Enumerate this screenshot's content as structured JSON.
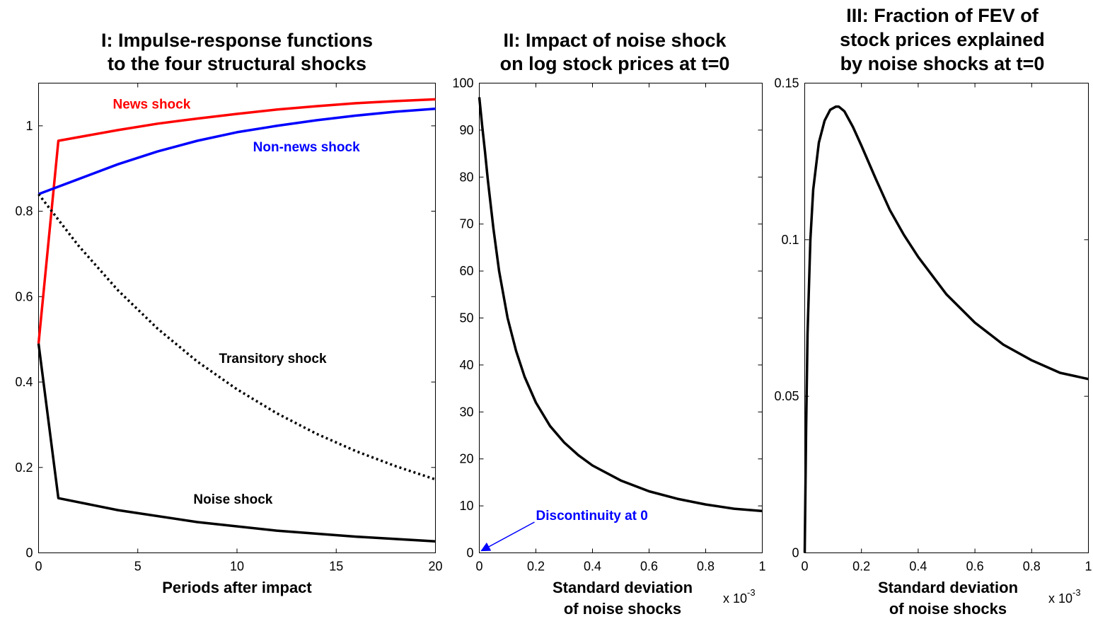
{
  "chart_data": [
    {
      "type": "line",
      "title": [
        "I: Impulse-response functions",
        "to the four structural shocks"
      ],
      "xlabel": [
        "Periods after impact"
      ],
      "ylabel": "",
      "xlim": [
        0,
        20
      ],
      "ylim": [
        0,
        1.1
      ],
      "xticks": [
        0,
        5,
        10,
        15,
        20
      ],
      "xticklabels": [
        "0",
        "5",
        "10",
        "15",
        "20"
      ],
      "yticks": [
        0,
        0.2,
        0.4,
        0.6,
        0.8,
        1
      ],
      "yticklabels": [
        "0",
        "0.2",
        "0.4",
        "0.6",
        "0.8",
        "1"
      ],
      "x_exponent": "",
      "grid": false,
      "series": [
        {
          "name": "News shock",
          "color": "#ff0000",
          "style": "solid",
          "x": [
            0,
            1,
            4,
            6,
            8,
            10,
            12,
            14,
            16,
            18,
            20
          ],
          "y": [
            0.49,
            0.965,
            0.99,
            1.005,
            1.017,
            1.028,
            1.038,
            1.046,
            1.053,
            1.058,
            1.062
          ]
        },
        {
          "name": "Non-news shock",
          "color": "#0000ff",
          "style": "solid",
          "x": [
            0,
            2,
            4,
            6,
            8,
            10,
            12,
            14,
            16,
            18,
            20
          ],
          "y": [
            0.84,
            0.875,
            0.91,
            0.94,
            0.965,
            0.985,
            1.0,
            1.013,
            1.024,
            1.033,
            1.04
          ]
        },
        {
          "name": "Transitory shock",
          "color": "#000000",
          "style": "dotted",
          "x": [
            0,
            2,
            4,
            6,
            8,
            10,
            12,
            14,
            16,
            18,
            20
          ],
          "y": [
            0.84,
            0.72,
            0.615,
            0.525,
            0.448,
            0.383,
            0.327,
            0.279,
            0.238,
            0.203,
            0.172
          ]
        },
        {
          "name": "Noise shock",
          "color": "#000000",
          "style": "solid",
          "x": [
            0,
            1,
            4,
            8,
            12,
            16,
            20
          ],
          "y": [
            0.49,
            0.128,
            0.1,
            0.072,
            0.052,
            0.038,
            0.027
          ]
        }
      ],
      "annotations": [
        {
          "text": "News shock",
          "x": 5.7,
          "y": 1.04,
          "color": "#ff0000",
          "anchor": "middle"
        },
        {
          "text": "Non-news shock",
          "x": 13.5,
          "y": 0.94,
          "color": "#0000ff",
          "anchor": "middle"
        },
        {
          "text": "Transitory shock",
          "x": 11.8,
          "y": 0.445,
          "color": "#000000",
          "anchor": "middle"
        },
        {
          "text": "Noise shock",
          "x": 9.8,
          "y": 0.115,
          "color": "#000000",
          "anchor": "middle"
        }
      ]
    },
    {
      "type": "line",
      "title": [
        "II: Impact of noise shock",
        "on log stock prices at t=0"
      ],
      "xlabel": [
        "Standard deviation",
        "of noise shocks"
      ],
      "ylabel": "",
      "xlim": [
        0,
        1
      ],
      "ylim": [
        0,
        100
      ],
      "xticks": [
        0,
        0.2,
        0.4,
        0.6,
        0.8,
        1
      ],
      "xticklabels": [
        "0",
        "0.2",
        "0.4",
        "0.6",
        "0.8",
        "1"
      ],
      "yticks": [
        0,
        10,
        20,
        30,
        40,
        50,
        60,
        70,
        80,
        90,
        100
      ],
      "yticklabels": [
        "0",
        "10",
        "20",
        "30",
        "40",
        "50",
        "60",
        "70",
        "80",
        "90",
        "100"
      ],
      "x_exponent": "x 10",
      "x_exponent_power": "-3",
      "grid": false,
      "series": [
        {
          "name": "",
          "color": "#000000",
          "style": "solid",
          "x": [
            0.0,
            0.005,
            0.01,
            0.02,
            0.03,
            0.05,
            0.07,
            0.1,
            0.13,
            0.16,
            0.2,
            0.25,
            0.3,
            0.35,
            0.4,
            0.5,
            0.6,
            0.7,
            0.8,
            0.9,
            1.0
          ],
          "y": [
            97,
            94,
            91,
            85.5,
            79.5,
            69,
            60,
            50,
            43,
            37.5,
            32,
            27,
            23.5,
            20.8,
            18.6,
            15.4,
            13.1,
            11.5,
            10.3,
            9.4,
            8.9
          ]
        }
      ],
      "annotations": [
        {
          "text": "Discontinuity at 0",
          "x": 0.2,
          "y": 7,
          "color": "#0000ff",
          "anchor": "start",
          "arrow_to": [
            0,
            0
          ]
        }
      ]
    },
    {
      "type": "line",
      "title": [
        "III: Fraction of FEV of",
        "stock prices explained",
        "by noise shocks at t=0"
      ],
      "xlabel": [
        "Standard deviation",
        "of noise shocks"
      ],
      "ylabel": "",
      "xlim": [
        0,
        1
      ],
      "ylim": [
        0,
        0.15
      ],
      "xticks": [
        0,
        0.2,
        0.4,
        0.6,
        0.8,
        1
      ],
      "xticklabels": [
        "0",
        "0.2",
        "0.4",
        "0.6",
        "0.8",
        "1"
      ],
      "yticks": [
        0,
        0.05,
        0.1,
        0.15
      ],
      "yticklabels": [
        "0",
        "0.05",
        "0.1",
        "0.15"
      ],
      "x_exponent": "x 10",
      "x_exponent_power": "-3",
      "grid": false,
      "series": [
        {
          "name": "",
          "color": "#000000",
          "style": "solid",
          "x": [
            0.0,
            0.005,
            0.01,
            0.02,
            0.03,
            0.05,
            0.07,
            0.09,
            0.11,
            0.12,
            0.14,
            0.17,
            0.2,
            0.25,
            0.3,
            0.35,
            0.4,
            0.5,
            0.6,
            0.7,
            0.8,
            0.9,
            1.0
          ],
          "y": [
            0.0,
            0.04,
            0.07,
            0.1,
            0.116,
            0.131,
            0.138,
            0.1415,
            0.1425,
            0.1425,
            0.141,
            0.136,
            0.13,
            0.1195,
            0.1095,
            0.1015,
            0.0945,
            0.0825,
            0.0735,
            0.0665,
            0.0615,
            0.0575,
            0.0555
          ]
        }
      ],
      "annotations": []
    }
  ]
}
